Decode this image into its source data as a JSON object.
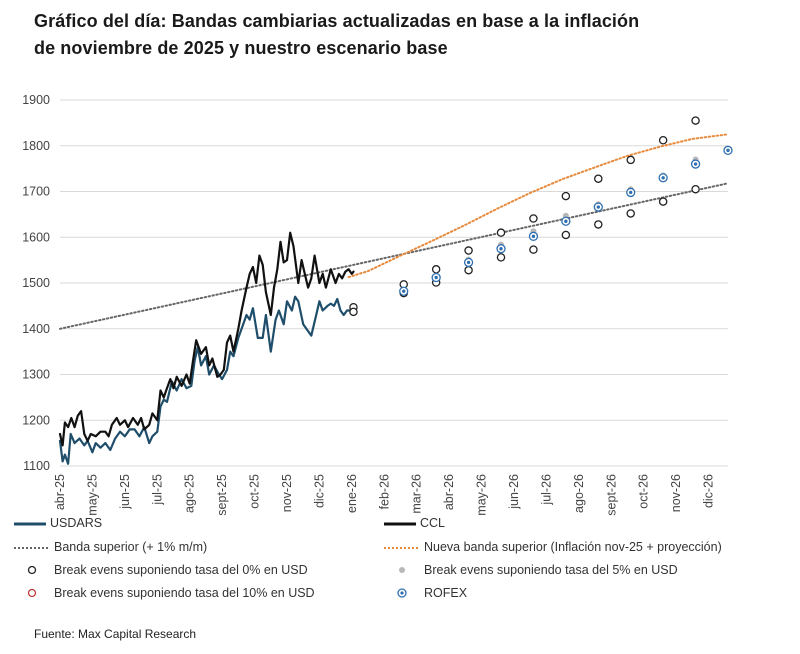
{
  "title_line1": "Gráfico del día: Bandas cambiarias actualizadas en base a la inflación",
  "title_line2": "de noviembre de 2025 y nuestro escenario base",
  "source": "Fuente: Max Capital Research",
  "colors": {
    "usdars": "#1f4e6b",
    "ccl": "#111111",
    "banda": "#666666",
    "nueva_banda": "#e8893a",
    "be0": "#222222",
    "be5": "#b8b8b8",
    "be10": "#c23b3b",
    "rofex": "#2f6fb0",
    "grid": "#d9d9d9"
  },
  "legend": {
    "usdars": "USDARS",
    "ccl": "CCL",
    "banda": "Banda superior (+ 1% m/m)",
    "nueva_banda": "Nueva banda superior (Inflación nov-25 + proyección)",
    "be0": "Break evens suponiendo tasa del 0% en USD",
    "be5": "Break evens suponiendo tasa del 5% en USD",
    "be10": "Break evens suponiendo tasa del 10% en USD",
    "rofex": "ROFEX"
  },
  "chart_data": {
    "type": "line",
    "title": "Gráfico del día: Bandas cambiarias actualizadas en base a la inflación de noviembre de 2025 y nuestro escenario base",
    "x_unit": "months since abr-25",
    "x_tick_labels": [
      "abr-25",
      "may-25",
      "jun-25",
      "jul-25",
      "ago-25",
      "sept-25",
      "oct-25",
      "nov-25",
      "dic-25",
      "ene-26",
      "feb-26",
      "mar-26",
      "abr-26",
      "may-26",
      "jun-26",
      "jul-26",
      "ago-26",
      "sept-26",
      "oct-26",
      "nov-26",
      "dic-26"
    ],
    "xlim": [
      0,
      20.6
    ],
    "ylim": [
      1100,
      1900
    ],
    "y_ticks": [
      1100,
      1200,
      1300,
      1400,
      1500,
      1600,
      1700,
      1800,
      1900
    ],
    "grid": true,
    "series": [
      {
        "name": "USDARS",
        "type": "line",
        "points": [
          [
            0,
            1155
          ],
          [
            0.08,
            1110
          ],
          [
            0.15,
            1125
          ],
          [
            0.25,
            1105
          ],
          [
            0.33,
            1170
          ],
          [
            0.45,
            1150
          ],
          [
            0.6,
            1160
          ],
          [
            0.75,
            1145
          ],
          [
            0.85,
            1155
          ],
          [
            1.0,
            1130
          ],
          [
            1.1,
            1150
          ],
          [
            1.25,
            1140
          ],
          [
            1.4,
            1150
          ],
          [
            1.55,
            1135
          ],
          [
            1.7,
            1160
          ],
          [
            1.85,
            1175
          ],
          [
            2.0,
            1165
          ],
          [
            2.15,
            1180
          ],
          [
            2.3,
            1180
          ],
          [
            2.45,
            1165
          ],
          [
            2.6,
            1185
          ],
          [
            2.75,
            1150
          ],
          [
            2.85,
            1165
          ],
          [
            3.0,
            1175
          ],
          [
            3.1,
            1230
          ],
          [
            3.2,
            1245
          ],
          [
            3.3,
            1240
          ],
          [
            3.45,
            1285
          ],
          [
            3.6,
            1265
          ],
          [
            3.75,
            1290
          ],
          [
            3.9,
            1270
          ],
          [
            4.05,
            1275
          ],
          [
            4.15,
            1330
          ],
          [
            4.25,
            1360
          ],
          [
            4.35,
            1320
          ],
          [
            4.5,
            1340
          ],
          [
            4.6,
            1300
          ],
          [
            4.75,
            1320
          ],
          [
            4.9,
            1300
          ],
          [
            5.0,
            1290
          ],
          [
            5.15,
            1310
          ],
          [
            5.25,
            1350
          ],
          [
            5.35,
            1340
          ],
          [
            5.5,
            1380
          ],
          [
            5.6,
            1400
          ],
          [
            5.75,
            1430
          ],
          [
            5.85,
            1420
          ],
          [
            5.95,
            1445
          ],
          [
            6.1,
            1380
          ],
          [
            6.25,
            1380
          ],
          [
            6.35,
            1430
          ],
          [
            6.5,
            1350
          ],
          [
            6.65,
            1420
          ],
          [
            6.75,
            1440
          ],
          [
            6.9,
            1410
          ],
          [
            7.0,
            1460
          ],
          [
            7.15,
            1440
          ],
          [
            7.25,
            1470
          ],
          [
            7.35,
            1460
          ],
          [
            7.5,
            1410
          ],
          [
            7.6,
            1400
          ],
          [
            7.75,
            1385
          ],
          [
            7.9,
            1430
          ],
          [
            8.0,
            1460
          ],
          [
            8.1,
            1440
          ],
          [
            8.25,
            1450
          ],
          [
            8.35,
            1455
          ],
          [
            8.45,
            1450
          ],
          [
            8.55,
            1465
          ],
          [
            8.65,
            1440
          ],
          [
            8.75,
            1430
          ],
          [
            8.85,
            1440
          ],
          [
            8.95,
            1440
          ],
          [
            9.0,
            1445
          ],
          [
            9.05,
            1445
          ]
        ]
      },
      {
        "name": "CCL",
        "type": "line",
        "points": [
          [
            0,
            1170
          ],
          [
            0.08,
            1145
          ],
          [
            0.15,
            1195
          ],
          [
            0.25,
            1185
          ],
          [
            0.35,
            1205
          ],
          [
            0.45,
            1185
          ],
          [
            0.55,
            1210
          ],
          [
            0.65,
            1220
          ],
          [
            0.75,
            1170
          ],
          [
            0.85,
            1155
          ],
          [
            0.95,
            1170
          ],
          [
            1.1,
            1165
          ],
          [
            1.25,
            1175
          ],
          [
            1.4,
            1175
          ],
          [
            1.5,
            1165
          ],
          [
            1.6,
            1190
          ],
          [
            1.75,
            1205
          ],
          [
            1.85,
            1190
          ],
          [
            2.0,
            1200
          ],
          [
            2.1,
            1185
          ],
          [
            2.25,
            1205
          ],
          [
            2.4,
            1190
          ],
          [
            2.5,
            1205
          ],
          [
            2.6,
            1180
          ],
          [
            2.75,
            1190
          ],
          [
            2.85,
            1215
          ],
          [
            3.0,
            1200
          ],
          [
            3.1,
            1265
          ],
          [
            3.2,
            1250
          ],
          [
            3.3,
            1270
          ],
          [
            3.4,
            1290
          ],
          [
            3.5,
            1270
          ],
          [
            3.6,
            1295
          ],
          [
            3.75,
            1275
          ],
          [
            3.9,
            1300
          ],
          [
            4.0,
            1280
          ],
          [
            4.1,
            1330
          ],
          [
            4.2,
            1375
          ],
          [
            4.35,
            1345
          ],
          [
            4.5,
            1360
          ],
          [
            4.6,
            1320
          ],
          [
            4.7,
            1335
          ],
          [
            4.85,
            1295
          ],
          [
            4.95,
            1300
          ],
          [
            5.05,
            1310
          ],
          [
            5.15,
            1370
          ],
          [
            5.25,
            1385
          ],
          [
            5.35,
            1350
          ],
          [
            5.5,
            1400
          ],
          [
            5.6,
            1440
          ],
          [
            5.75,
            1490
          ],
          [
            5.85,
            1520
          ],
          [
            5.95,
            1535
          ],
          [
            6.05,
            1500
          ],
          [
            6.15,
            1560
          ],
          [
            6.25,
            1540
          ],
          [
            6.35,
            1480
          ],
          [
            6.5,
            1430
          ],
          [
            6.6,
            1490
          ],
          [
            6.7,
            1530
          ],
          [
            6.8,
            1590
          ],
          [
            6.9,
            1545
          ],
          [
            7.0,
            1550
          ],
          [
            7.1,
            1610
          ],
          [
            7.2,
            1580
          ],
          [
            7.35,
            1500
          ],
          [
            7.45,
            1550
          ],
          [
            7.55,
            1520
          ],
          [
            7.65,
            1490
          ],
          [
            7.75,
            1510
          ],
          [
            7.85,
            1560
          ],
          [
            8.0,
            1500
          ],
          [
            8.1,
            1520
          ],
          [
            8.2,
            1490
          ],
          [
            8.35,
            1530
          ],
          [
            8.5,
            1500
          ],
          [
            8.6,
            1520
          ],
          [
            8.7,
            1510
          ],
          [
            8.8,
            1525
          ],
          [
            8.9,
            1530
          ],
          [
            9.0,
            1520
          ],
          [
            9.05,
            1525
          ]
        ]
      },
      {
        "name": "Banda superior (+ 1% m/m)",
        "type": "line",
        "style": "dotted",
        "points": [
          [
            0,
            1400
          ],
          [
            20.6,
            1718
          ]
        ]
      },
      {
        "name": "Nueva banda superior (Inflación nov-25 + proyección)",
        "type": "line",
        "style": "dotted",
        "points": [
          [
            8.9,
            1513
          ],
          [
            9.5,
            1526
          ],
          [
            10.5,
            1560
          ],
          [
            11.5,
            1593
          ],
          [
            12.5,
            1627
          ],
          [
            13.5,
            1663
          ],
          [
            14.5,
            1697
          ],
          [
            15.5,
            1727
          ],
          [
            16.5,
            1753
          ],
          [
            17.5,
            1778
          ],
          [
            18.5,
            1798
          ],
          [
            19.5,
            1815
          ],
          [
            20.6,
            1825
          ]
        ]
      },
      {
        "name": "Break evens suponiendo tasa del 0% en USD",
        "type": "scatter",
        "points": [
          [
            10.6,
            1497
          ],
          [
            11.6,
            1530
          ],
          [
            12.6,
            1571
          ],
          [
            13.6,
            1610
          ],
          [
            14.6,
            1641
          ],
          [
            15.6,
            1690
          ],
          [
            16.6,
            1728
          ],
          [
            17.6,
            1769
          ],
          [
            18.6,
            1812
          ],
          [
            19.6,
            1855
          ]
        ]
      },
      {
        "name": "Break evens suponiendo tasa del 5% en USD",
        "type": "scatter",
        "points": [
          [
            10.6,
            1483
          ],
          [
            11.6,
            1516
          ],
          [
            12.6,
            1551
          ],
          [
            13.6,
            1584
          ],
          [
            14.6,
            1613
          ],
          [
            15.6,
            1647
          ],
          [
            16.6,
            1672
          ],
          [
            17.6,
            1705
          ],
          [
            18.6,
            1735
          ],
          [
            19.6,
            1770
          ]
        ]
      },
      {
        "name": "Break evens suponiendo tasa del 10% en USD",
        "type": "scatter",
        "points": [
          [
            9.05,
            1447
          ],
          [
            9.05,
            1437
          ],
          [
            10.6,
            1478
          ],
          [
            11.6,
            1501
          ],
          [
            12.6,
            1528
          ],
          [
            13.6,
            1556
          ],
          [
            14.6,
            1573
          ],
          [
            15.6,
            1605
          ],
          [
            16.6,
            1628
          ],
          [
            17.6,
            1652
          ],
          [
            18.6,
            1678
          ],
          [
            19.6,
            1705
          ]
        ]
      },
      {
        "name": "ROFEX",
        "type": "scatter",
        "points": [
          [
            10.6,
            1482
          ],
          [
            11.6,
            1512
          ],
          [
            12.6,
            1545
          ],
          [
            13.6,
            1575
          ],
          [
            14.6,
            1602
          ],
          [
            15.6,
            1635
          ],
          [
            16.6,
            1666
          ],
          [
            17.6,
            1698
          ],
          [
            18.6,
            1730
          ],
          [
            19.6,
            1760
          ],
          [
            20.6,
            1790
          ]
        ]
      }
    ]
  }
}
